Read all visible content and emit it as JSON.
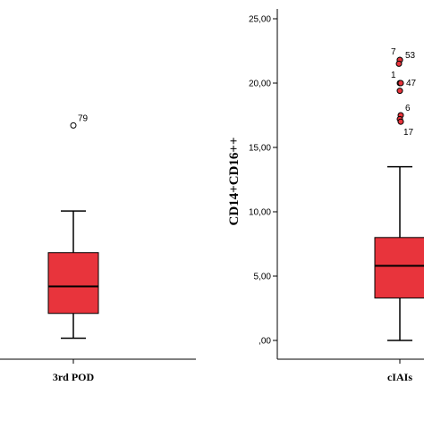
{
  "chart_data": [
    {
      "type": "box",
      "title": "",
      "xlabel": "",
      "ylabel": "",
      "categories": [
        "3rd POD"
      ],
      "boxes": [
        {
          "category": "3rd POD",
          "min": 0.2,
          "q1": 2.4,
          "median": 4.8,
          "q3": 7.8,
          "max": 11.5,
          "outliers": [
            {
              "label": "79",
              "value": 19.1
            }
          ]
        }
      ],
      "ylim": [
        -2.3,
        26.0
      ]
    },
    {
      "type": "box",
      "title": "",
      "xlabel": "",
      "ylabel": "CD14+CD16++",
      "categories": [
        "cIAIs"
      ],
      "y_ticks": [
        ",00",
        "5,00",
        "10,00",
        "15,00",
        "20,00",
        "25,00"
      ],
      "y_tick_values": [
        0,
        5,
        10,
        15,
        20,
        25
      ],
      "boxes": [
        {
          "category": "cIAIs",
          "min": 0.0,
          "q1": 3.3,
          "median": 5.8,
          "q3": 8.0,
          "max": 13.5,
          "outliers": [
            {
              "label": "7",
              "value": 21.8
            },
            {
              "label": "53",
              "value": 21.8
            },
            {
              "label": "",
              "value": 21.5
            },
            {
              "label": "1",
              "value": 20.0
            },
            {
              "label": "47",
              "value": 20.0
            },
            {
              "label": "",
              "value": 19.4
            },
            {
              "label": "6",
              "value": 17.5
            },
            {
              "label": "",
              "value": 17.2
            },
            {
              "label": "17",
              "value": 17.0
            }
          ]
        }
      ],
      "ylim": [
        -0.7,
        26.0
      ]
    }
  ],
  "colors": {
    "box_fill": "#e8343c",
    "axis": "#000000"
  }
}
